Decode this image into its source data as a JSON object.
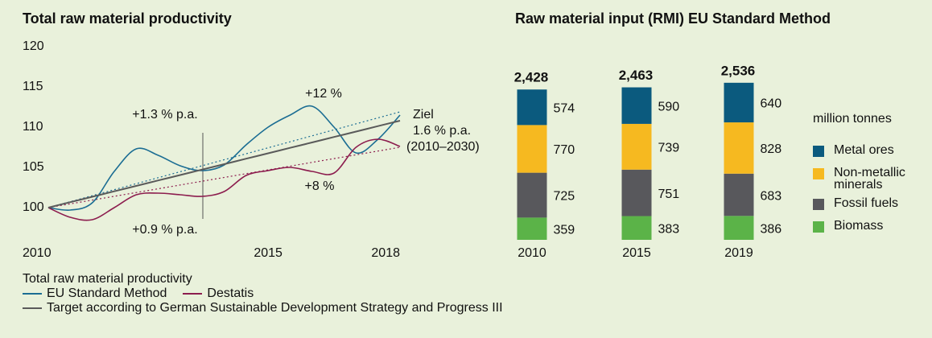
{
  "chart_data": [
    {
      "type": "line",
      "title": "Total raw material productivity",
      "x": [
        2010,
        2010.5,
        2011,
        2011.5,
        2012,
        2012.5,
        2013,
        2013.5,
        2014,
        2014.5,
        2015,
        2015.5,
        2016,
        2016.5,
        2017,
        2017.5,
        2018
      ],
      "xlim": [
        2010,
        2018
      ],
      "xticks": [
        2010,
        2015,
        2018
      ],
      "ylim": [
        97,
        120
      ],
      "yticks": [
        100,
        105,
        110,
        115,
        120
      ],
      "grid": false,
      "legend_title": "Total raw material productivity",
      "series": [
        {
          "name": "EU Standard Method",
          "color": "#1b6d93",
          "values": [
            100,
            99.7,
            100.6,
            104.5,
            107.3,
            106.5,
            105.2,
            104.6,
            105.3,
            107.8,
            110,
            111.5,
            112.6,
            110,
            106.8,
            108.5,
            111.5
          ]
        },
        {
          "name": "Destatis",
          "color": "#8c1d4e",
          "values": [
            100,
            98.8,
            98.5,
            100,
            101.6,
            101.8,
            101.6,
            101.4,
            102,
            104,
            104.6,
            105,
            104.5,
            104.3,
            107.5,
            108.5,
            107.6
          ]
        },
        {
          "name": "Target according to German Sustainable Development Strategy and Progress III",
          "color": "#5a5a5a",
          "values": [
            100,
            100.68,
            101.35,
            102.03,
            102.7,
            103.38,
            104.05,
            104.73,
            105.4,
            106.08,
            106.75,
            107.43,
            108.1,
            108.78,
            109.45,
            110.13,
            110.8
          ]
        }
      ],
      "trend_lines": [
        {
          "color": "#1b6d93",
          "x": [
            2010,
            2018
          ],
          "values": [
            100,
            111.9
          ]
        },
        {
          "color": "#8c1d4e",
          "x": [
            2010,
            2018
          ],
          "values": [
            100,
            107.5
          ]
        }
      ],
      "annotations": [
        "+1.3 % p.a.",
        "+0.9 % p.a.",
        "+12 %",
        "+8 %",
        "Ziel",
        "1.6 % p.a.",
        "(2010–2030)"
      ]
    },
    {
      "type": "bar",
      "stacked": true,
      "title": "Raw material input (RMI) EU Standard Method",
      "categories": [
        "2010",
        "2015",
        "2019"
      ],
      "ylim": [
        0,
        2600
      ],
      "legend_title": "million tonnes",
      "totals": [
        2428,
        2463,
        2536
      ],
      "totals_labels": [
        "2,428",
        "2,463",
        "2,536"
      ],
      "series": [
        {
          "name": "Metal ores",
          "color": "#0b5a7e",
          "values": [
            574,
            590,
            640
          ]
        },
        {
          "name": "Non-metallic minerals",
          "color": "#f6b920",
          "values": [
            770,
            739,
            828
          ]
        },
        {
          "name": "Fossil fuels",
          "color": "#58585c",
          "values": [
            725,
            751,
            683
          ]
        },
        {
          "name": "Biomass",
          "color": "#5bb348",
          "values": [
            359,
            383,
            386
          ]
        }
      ]
    }
  ]
}
